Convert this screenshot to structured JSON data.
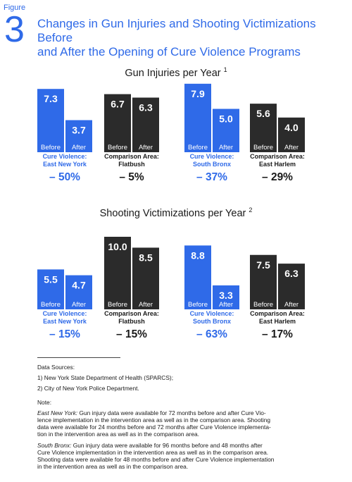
{
  "header": {
    "figure_label": "Figure",
    "figure_number": "3",
    "title_line1": "Changes in Gun Injuries and Shooting Victimizations Before",
    "title_line2": "and After the Opening of Cure Violence Programs"
  },
  "colors": {
    "program": "#2f6ae8",
    "comparison": "#2b2b2b",
    "accent_text": "#2f6ae8",
    "dark_text": "#1a1a1a"
  },
  "chart_data": [
    {
      "type": "bar",
      "title": "Gun Injuries per Year",
      "title_superscript": "1",
      "bar_labels": [
        "Before",
        "After"
      ],
      "groups": [
        {
          "name_line1": "Cure Violence:",
          "name_line2": "East New York",
          "kind": "program",
          "before": 7.3,
          "after": 3.7,
          "change": "– 50%"
        },
        {
          "name_line1": "Comparison Area:",
          "name_line2": "Flatbush",
          "kind": "comparison",
          "before": 6.7,
          "after": 6.3,
          "change": "– 5%"
        },
        {
          "name_line1": "Cure Violence:",
          "name_line2": "South Bronx",
          "kind": "program",
          "before": 7.9,
          "after": 5.0,
          "change": "– 37%"
        },
        {
          "name_line1": "Comparison Area:",
          "name_line2": "East Harlem",
          "kind": "comparison",
          "before": 5.6,
          "after": 4.0,
          "change": "– 29%"
        }
      ]
    },
    {
      "type": "bar",
      "title": "Shooting Victimizations per Year",
      "title_superscript": "2",
      "bar_labels": [
        "Before",
        "After"
      ],
      "groups": [
        {
          "name_line1": "Cure Violence:",
          "name_line2": "East New York",
          "kind": "program",
          "before": 5.5,
          "after": 4.7,
          "change": "– 15%"
        },
        {
          "name_line1": "Comparison Area:",
          "name_line2": "Flatbush",
          "kind": "comparison",
          "before": 10.0,
          "after": 8.5,
          "change": "– 15%"
        },
        {
          "name_line1": "Cure Violence:",
          "name_line2": "South Bronx",
          "kind": "program",
          "before": 8.8,
          "after": 3.3,
          "change": "– 63%"
        },
        {
          "name_line1": "Comparison Area:",
          "name_line2": "East Harlem",
          "kind": "comparison",
          "before": 7.5,
          "after": 6.3,
          "change": "– 17%"
        }
      ]
    }
  ],
  "notes": {
    "sources_heading": "Data Sources:",
    "source1": "1) New York State Department of Health (SPARCS);",
    "source2": "2) City of New York Police Department.",
    "note_heading": "Note:",
    "eny_label": "East New York:",
    "eny_lines": [
      "Gun injury data were available for 72 months before and after Cure Vio-",
      "lence implementation in the intervention area as well as in the comparison area. Shooting",
      "data were available for 24 months before and 72 months after Cure Violence implementa-",
      "tion in the intervention area as well as in the comparison area."
    ],
    "sb_label": "South Bronx:",
    "sb_lines": [
      "Gun injury data were available for 96 months before and 48 months after",
      "Cure Violence implementation in the intervention area as well as in the comparison area.",
      "Shooting data were available for 48 months before and after Cure Violence implementation",
      "in the intervention area as well as in the comparison area."
    ]
  }
}
